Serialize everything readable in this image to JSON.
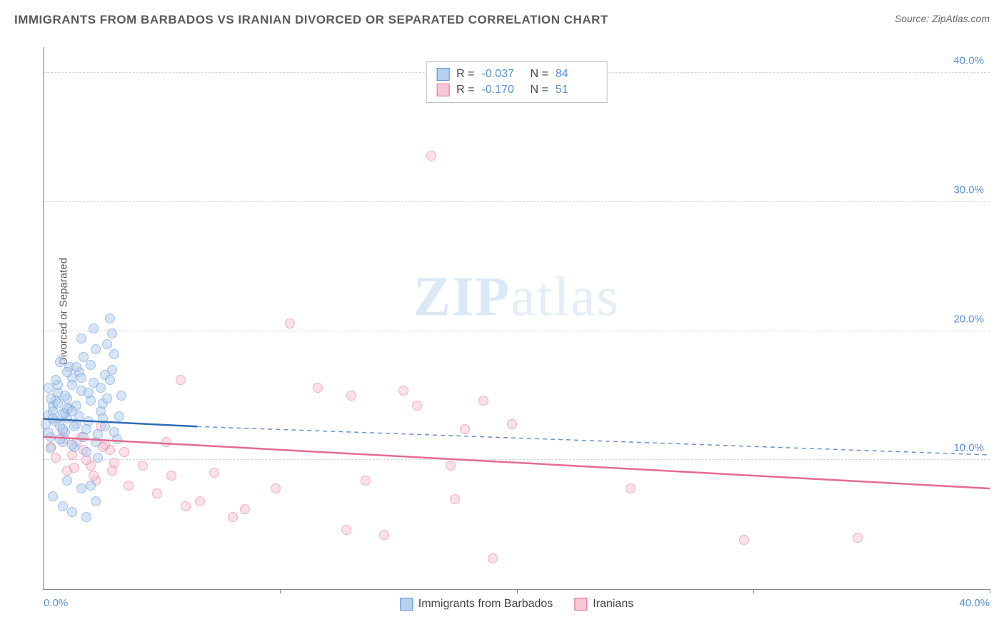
{
  "title": "IMMIGRANTS FROM BARBADOS VS IRANIAN DIVORCED OR SEPARATED CORRELATION CHART",
  "source_prefix": "Source: ",
  "source_name": "ZipAtlas.com",
  "ylabel": "Divorced or Separated",
  "watermark_bold": "ZIP",
  "watermark_light": "atlas",
  "chart": {
    "type": "scatter",
    "background_color": "#ffffff",
    "grid_color": "#d5d5d5",
    "xlim": [
      0,
      40
    ],
    "ylim": [
      0,
      42
    ],
    "xtick_positions": [
      0,
      10,
      20,
      30,
      40
    ],
    "xtick_labels": [
      "0.0%",
      "",
      "",
      "",
      "40.0%"
    ],
    "ytick_positions": [
      10,
      20,
      30,
      40
    ],
    "ytick_labels": [
      "10.0%",
      "20.0%",
      "30.0%",
      "40.0%"
    ],
    "axis_color": "#888888",
    "tick_label_color": "#5a8fd6",
    "marker_radius": 7,
    "marker_opacity": 0.55,
    "marker_stroke_width": 1.5,
    "series": [
      {
        "key": "barbados",
        "label": "Immigrants from Barbados",
        "fill": "#b6d1ee",
        "stroke": "#5a8fd6",
        "r": "-0.037",
        "n": "84",
        "trend": {
          "solid": {
            "x1": 0,
            "y1": 13.2,
            "x2": 6.5,
            "y2": 12.6,
            "color": "#2f6bb3",
            "width": 2.5
          },
          "dashed": {
            "x1": 6.5,
            "y1": 12.6,
            "x2": 40,
            "y2": 10.4,
            "color": "#6a94c9",
            "width": 1.5,
            "dash": "6 5"
          }
        },
        "points": [
          [
            0.1,
            12.8
          ],
          [
            0.2,
            13.5
          ],
          [
            0.3,
            11.8
          ],
          [
            0.4,
            14.2
          ],
          [
            0.2,
            12.1
          ],
          [
            0.5,
            13.0
          ],
          [
            0.6,
            15.2
          ],
          [
            0.3,
            10.9
          ],
          [
            0.7,
            12.6
          ],
          [
            0.4,
            13.8
          ],
          [
            0.8,
            11.4
          ],
          [
            0.5,
            14.6
          ],
          [
            0.9,
            12.2
          ],
          [
            0.6,
            15.8
          ],
          [
            1.0,
            13.2
          ],
          [
            0.7,
            11.6
          ],
          [
            1.1,
            14.0
          ],
          [
            0.8,
            12.4
          ],
          [
            1.2,
            16.4
          ],
          [
            0.9,
            13.6
          ],
          [
            1.3,
            11.0
          ],
          [
            1.0,
            14.8
          ],
          [
            1.4,
            12.8
          ],
          [
            1.1,
            17.2
          ],
          [
            1.5,
            13.4
          ],
          [
            1.2,
            11.2
          ],
          [
            1.6,
            15.4
          ],
          [
            1.3,
            12.6
          ],
          [
            1.7,
            18.0
          ],
          [
            1.4,
            14.2
          ],
          [
            1.8,
            10.6
          ],
          [
            1.5,
            16.8
          ],
          [
            1.9,
            13.0
          ],
          [
            1.6,
            19.4
          ],
          [
            2.0,
            14.6
          ],
          [
            1.7,
            11.8
          ],
          [
            2.1,
            16.0
          ],
          [
            1.8,
            12.4
          ],
          [
            2.2,
            18.6
          ],
          [
            1.9,
            15.2
          ],
          [
            2.3,
            10.2
          ],
          [
            2.0,
            17.4
          ],
          [
            2.4,
            13.8
          ],
          [
            2.1,
            20.2
          ],
          [
            2.5,
            14.4
          ],
          [
            2.2,
            11.4
          ],
          [
            2.6,
            16.6
          ],
          [
            2.3,
            12.0
          ],
          [
            2.7,
            19.0
          ],
          [
            2.4,
            15.6
          ],
          [
            2.8,
            21.0
          ],
          [
            2.5,
            13.2
          ],
          [
            2.9,
            17.0
          ],
          [
            2.6,
            12.6
          ],
          [
            3.0,
            18.2
          ],
          [
            2.7,
            14.8
          ],
          [
            3.1,
            11.6
          ],
          [
            2.8,
            16.2
          ],
          [
            3.2,
            13.4
          ],
          [
            2.9,
            19.8
          ],
          [
            3.3,
            15.0
          ],
          [
            3.0,
            12.2
          ],
          [
            0.4,
            7.2
          ],
          [
            0.8,
            6.4
          ],
          [
            1.2,
            6.0
          ],
          [
            1.6,
            7.8
          ],
          [
            1.0,
            8.4
          ],
          [
            1.8,
            5.6
          ],
          [
            2.0,
            8.0
          ],
          [
            2.2,
            6.8
          ],
          [
            0.2,
            15.6
          ],
          [
            0.5,
            16.2
          ],
          [
            0.3,
            14.8
          ],
          [
            0.7,
            17.6
          ],
          [
            0.4,
            13.2
          ],
          [
            0.9,
            15.0
          ],
          [
            0.6,
            14.4
          ],
          [
            1.0,
            16.8
          ],
          [
            0.8,
            13.6
          ],
          [
            1.2,
            15.8
          ],
          [
            1.0,
            14.0
          ],
          [
            1.4,
            17.2
          ],
          [
            1.2,
            13.8
          ],
          [
            1.6,
            16.4
          ]
        ]
      },
      {
        "key": "iranians",
        "label": "Iranians",
        "fill": "#f6c9d5",
        "stroke": "#e26c8e",
        "r": "-0.170",
        "n": "51",
        "trend": {
          "solid": {
            "x1": 0,
            "y1": 11.8,
            "x2": 40,
            "y2": 7.8,
            "color": "#e26c8e",
            "width": 2.5
          }
        },
        "points": [
          [
            0.3,
            11.0
          ],
          [
            0.8,
            12.2
          ],
          [
            1.2,
            10.4
          ],
          [
            1.6,
            11.8
          ],
          [
            2.0,
            9.6
          ],
          [
            2.4,
            12.6
          ],
          [
            2.8,
            10.8
          ],
          [
            1.0,
            9.2
          ],
          [
            1.4,
            11.4
          ],
          [
            1.8,
            10.0
          ],
          [
            2.2,
            8.4
          ],
          [
            2.6,
            11.2
          ],
          [
            3.0,
            9.8
          ],
          [
            3.4,
            10.6
          ],
          [
            0.5,
            10.2
          ],
          [
            0.9,
            11.6
          ],
          [
            1.3,
            9.4
          ],
          [
            1.7,
            10.8
          ],
          [
            2.1,
            8.8
          ],
          [
            2.5,
            11.0
          ],
          [
            2.9,
            9.2
          ],
          [
            3.6,
            8.0
          ],
          [
            4.2,
            9.6
          ],
          [
            4.8,
            7.4
          ],
          [
            5.4,
            8.8
          ],
          [
            6.6,
            6.8
          ],
          [
            7.2,
            9.0
          ],
          [
            8.5,
            6.2
          ],
          [
            9.8,
            7.8
          ],
          [
            10.4,
            20.6
          ],
          [
            11.6,
            15.6
          ],
          [
            12.8,
            4.6
          ],
          [
            13.0,
            15.0
          ],
          [
            13.6,
            8.4
          ],
          [
            14.4,
            4.2
          ],
          [
            15.2,
            15.4
          ],
          [
            15.8,
            14.2
          ],
          [
            16.4,
            33.6
          ],
          [
            17.2,
            9.6
          ],
          [
            17.8,
            12.4
          ],
          [
            17.4,
            7.0
          ],
          [
            18.6,
            14.6
          ],
          [
            19.0,
            2.4
          ],
          [
            19.8,
            12.8
          ],
          [
            24.8,
            7.8
          ],
          [
            29.6,
            3.8
          ],
          [
            34.4,
            4.0
          ],
          [
            5.8,
            16.2
          ],
          [
            5.2,
            11.4
          ],
          [
            6.0,
            6.4
          ],
          [
            8.0,
            5.6
          ]
        ]
      }
    ]
  },
  "stats_labels": {
    "r": "R =",
    "n": "N ="
  }
}
